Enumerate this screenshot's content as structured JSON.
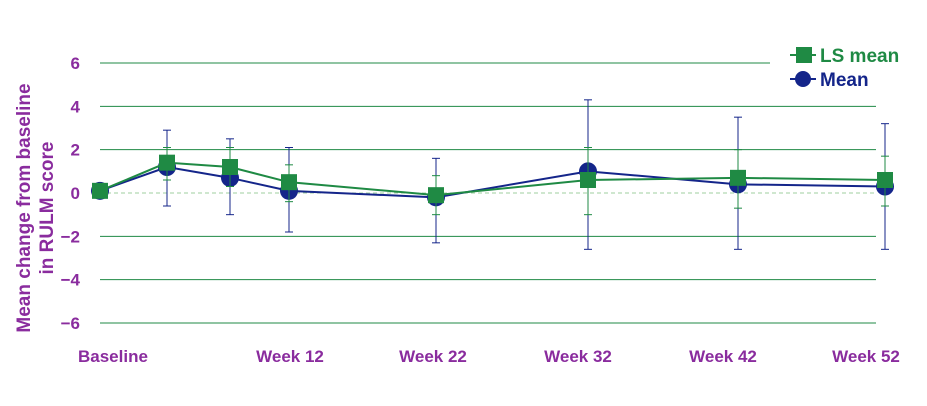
{
  "chart_data": {
    "type": "line",
    "ylabel_lines": [
      "Mean change from baseline",
      "in RULM score"
    ],
    "ylim": [
      -6,
      6
    ],
    "yticks": [
      6,
      4,
      2,
      0,
      -2,
      -4,
      -6
    ],
    "ytick_labels": [
      "6",
      "4",
      "2",
      "0",
      "−2",
      "−4",
      "−6"
    ],
    "xlim": [
      0,
      52
    ],
    "xticks": [
      0,
      12,
      22,
      32,
      42,
      52
    ],
    "xtick_labels": [
      "Baseline",
      "Week 12",
      "Week 22",
      "Week 32",
      "Week 42",
      "Week 52"
    ],
    "grid": true,
    "legend_position": "top-right",
    "series": [
      {
        "name": "LS mean",
        "marker": "square",
        "color": "#1f8a44",
        "x": [
          0,
          5,
          9,
          13,
          23,
          34,
          44,
          54
        ],
        "y": [
          0.1,
          1.4,
          1.2,
          0.5,
          -0.1,
          0.6,
          0.7,
          0.6
        ],
        "err_low": [
          0.1,
          0.6,
          0.3,
          -0.4,
          -1.0,
          -1.0,
          -0.7,
          -0.6
        ],
        "err_high": [
          0.1,
          2.1,
          2.1,
          1.3,
          0.8,
          2.1,
          2.0,
          1.7
        ]
      },
      {
        "name": "Mean",
        "marker": "circle",
        "color": "#14258a",
        "x": [
          0,
          5,
          9,
          13,
          23,
          34,
          44,
          54
        ],
        "y": [
          0.1,
          1.2,
          0.7,
          0.1,
          -0.2,
          1.0,
          0.4,
          0.3
        ],
        "err_low": [
          0.1,
          -0.6,
          -1.0,
          -1.8,
          -2.3,
          -2.6,
          -2.6,
          -2.6
        ],
        "err_high": [
          0.1,
          2.9,
          2.5,
          2.1,
          1.6,
          4.3,
          3.5,
          3.2
        ]
      }
    ]
  },
  "colors": {
    "axis_text": "#8a2c9e",
    "gridline": "#1f8a44",
    "zero_line": "#9fcf9f"
  }
}
